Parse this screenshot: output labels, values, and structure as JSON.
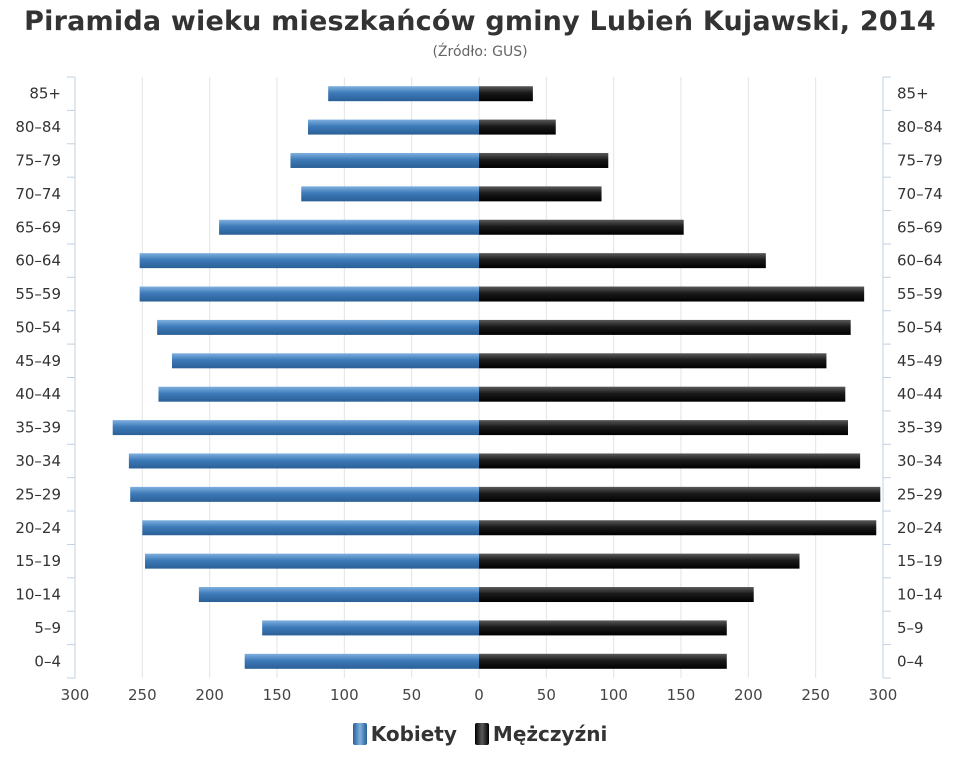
{
  "chart_data": {
    "type": "bar",
    "title": "Piramida wieku mieszkańców gminy Lubień Kujawski, 2014",
    "subtitle": "(Źródło: GUS)",
    "categories": [
      "0–4",
      "5–9",
      "10–14",
      "15–19",
      "20–24",
      "25–29",
      "30–34",
      "35–39",
      "40–44",
      "45–49",
      "50–54",
      "55–59",
      "60–64",
      "65–69",
      "70–74",
      "75–79",
      "80–84",
      "85+"
    ],
    "series": [
      {
        "name": "Kobiety",
        "color": "#3d7ab8",
        "values": [
          174,
          161,
          208,
          248,
          250,
          259,
          260,
          272,
          238,
          228,
          239,
          252,
          252,
          193,
          132,
          140,
          127,
          112
        ]
      },
      {
        "name": "Mężczyźni",
        "color": "#1a1a1a",
        "values": [
          184,
          184,
          204,
          238,
          295,
          298,
          283,
          274,
          272,
          258,
          276,
          286,
          213,
          152,
          91,
          96,
          57,
          40
        ]
      }
    ],
    "xlim": [
      -300,
      300
    ],
    "xticks": [
      -300,
      -250,
      -200,
      -150,
      -100,
      -50,
      0,
      50,
      100,
      150,
      200,
      250,
      300
    ],
    "xtick_labels": [
      "300",
      "250",
      "200",
      "150",
      "100",
      "50",
      "0",
      "50",
      "100",
      "150",
      "200",
      "250",
      "300"
    ],
    "grid": true,
    "legend_position": "bottom-center"
  },
  "legend": [
    {
      "label": "Kobiety",
      "icon": "blue-swatch-icon"
    },
    {
      "label": "Mężczyźni",
      "icon": "black-swatch-icon"
    }
  ]
}
